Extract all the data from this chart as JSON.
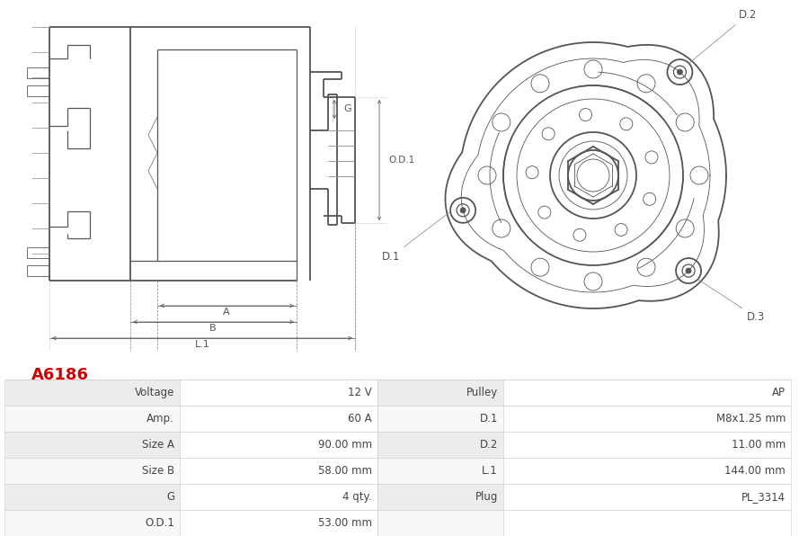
{
  "title": "A6186",
  "title_color": "#cc0000",
  "bg_color": "#ffffff",
  "table_rows": [
    [
      "Voltage",
      "12 V",
      "Pulley",
      "AP"
    ],
    [
      "Amp.",
      "60 A",
      "D.1",
      "M8x1.25 mm"
    ],
    [
      "Size A",
      "90.00 mm",
      "D.2",
      "11.00 mm"
    ],
    [
      "Size B",
      "58.00 mm",
      "L.1",
      "144.00 mm"
    ],
    [
      "G",
      "4 qty.",
      "Plug",
      "PL_3314"
    ],
    [
      "O.D.1",
      "53.00 mm",
      "",
      ""
    ]
  ],
  "row_bg": [
    "#ececec",
    "#f8f8f8"
  ],
  "text_color": "#444444",
  "line_color": "#555555"
}
